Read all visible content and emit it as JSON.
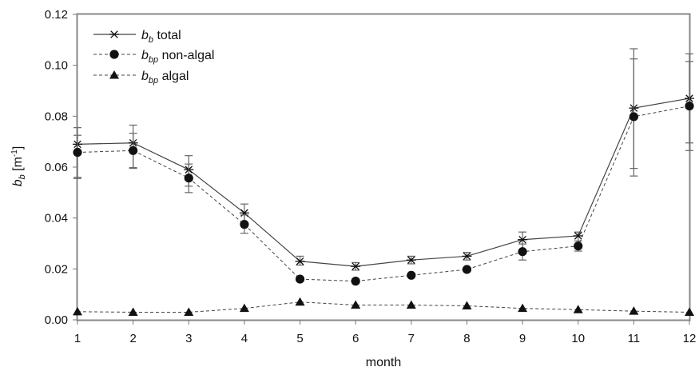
{
  "chart_data": {
    "type": "line",
    "title": "",
    "xlabel": "month",
    "ylabel": {
      "main": "b",
      "sub": "b",
      "unit_prefix": " [m",
      "unit_sup": "-1",
      "unit_suffix": "]"
    },
    "xlim": [
      1,
      12
    ],
    "ylim": [
      0,
      0.12
    ],
    "x_ticks": [
      "1",
      "2",
      "3",
      "4",
      "5",
      "6",
      "7",
      "8",
      "9",
      "10",
      "11",
      "12"
    ],
    "y_ticks": [
      "0.00",
      "0.02",
      "0.04",
      "0.06",
      "0.08",
      "0.10",
      "0.12"
    ],
    "grid": false,
    "legend_position": "top-left",
    "x": [
      1,
      2,
      3,
      4,
      5,
      6,
      7,
      8,
      9,
      10,
      11,
      12
    ],
    "series": [
      {
        "name": "total",
        "label_main": "b",
        "label_sub": "b",
        "label_rest": " total",
        "marker": "asterisk",
        "line_style": "solid",
        "values": [
          0.069,
          0.0695,
          0.059,
          0.042,
          0.023,
          0.021,
          0.0235,
          0.025,
          0.0315,
          0.033,
          0.0832,
          0.087
        ],
        "error_low": [
          0.056,
          0.0595,
          0.0525,
          0.0375,
          0.0215,
          0.0195,
          0.022,
          0.0235,
          0.0275,
          0.0295,
          0.0595,
          0.0695
        ],
        "error_high": [
          0.0755,
          0.0765,
          0.0645,
          0.0455,
          0.025,
          0.0225,
          0.025,
          0.0265,
          0.0345,
          0.0345,
          0.1065,
          0.1045
        ]
      },
      {
        "name": "non-algal",
        "label_main": "b",
        "label_sub": "bp",
        "label_rest": " non-algal",
        "marker": "circle",
        "line_style": "dashed",
        "values": [
          0.0658,
          0.0665,
          0.0557,
          0.0375,
          0.016,
          0.0152,
          0.0175,
          0.0198,
          0.0268,
          0.029,
          0.0798,
          0.084
        ],
        "error_low": [
          0.0555,
          0.0598,
          0.05,
          0.034,
          0.0155,
          0.0145,
          0.0168,
          0.019,
          0.0235,
          0.027,
          0.0565,
          0.0665
        ],
        "error_high": [
          0.0725,
          0.0733,
          0.0612,
          0.0412,
          0.0168,
          0.016,
          0.0182,
          0.0205,
          0.0298,
          0.031,
          0.1025,
          0.1015
        ]
      },
      {
        "name": "algal",
        "label_main": "b",
        "label_sub": "bp",
        "label_rest": " algal",
        "marker": "triangle",
        "line_style": "dashed",
        "values": [
          0.0032,
          0.003,
          0.003,
          0.0045,
          0.007,
          0.0058,
          0.0058,
          0.0055,
          0.0045,
          0.004,
          0.0034,
          0.003
        ]
      }
    ]
  }
}
